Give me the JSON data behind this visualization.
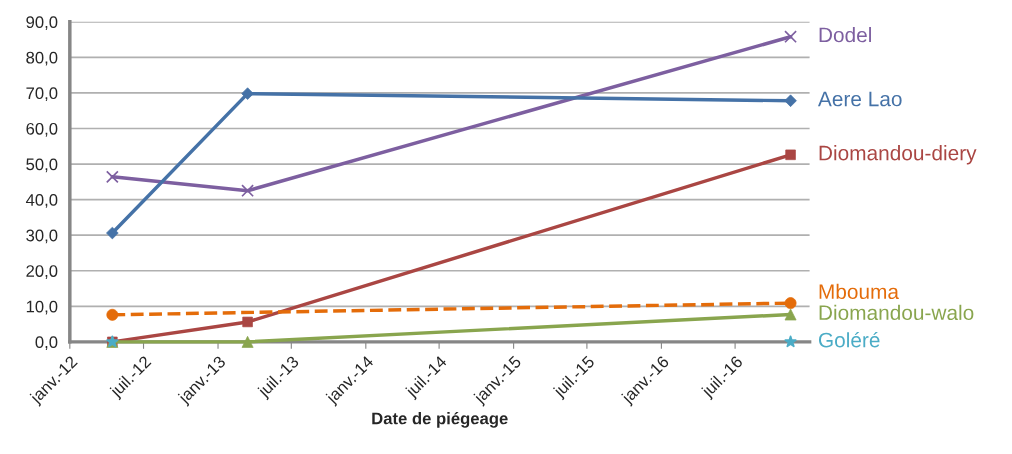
{
  "chart_data": {
    "type": "line",
    "xlabel": "Date de piégeage",
    "x": [
      "2012-04-15",
      "2013-03-15",
      "2016-11-15"
    ],
    "series": [
      {
        "name": "Dodel",
        "color": "#7d5fa0",
        "marker": "cross",
        "values": [
          46.4,
          42.5,
          85.8
        ]
      },
      {
        "name": "Aere Lao",
        "color": "#4572a7",
        "marker": "diamond",
        "values": [
          30.6,
          69.8,
          67.8
        ]
      },
      {
        "name": "Diomandou-diery",
        "color": "#aa4643",
        "marker": "square",
        "values": [
          0.0,
          5.6,
          52.6
        ]
      },
      {
        "name": "Mbouma",
        "color": "#e46c0a",
        "marker": "circle",
        "line_style": "dashed",
        "x": [
          "2012-04-15",
          "2016-11-15"
        ],
        "values": [
          7.6,
          10.9
        ]
      },
      {
        "name": "Diomandou-walo",
        "color": "#89a54e",
        "marker": "triangle",
        "values": [
          0.0,
          0.0,
          7.7
        ]
      },
      {
        "name": "Goléré",
        "type": "scatter",
        "color": "#4bacc6",
        "marker": "star",
        "x": [
          "2012-04-15",
          "2016-11-15"
        ],
        "values": [
          0.0,
          0.0
        ]
      }
    ],
    "xlim": [
      "2012-01-01",
      "2017-01-01"
    ],
    "xticks": [
      {
        "value": "2012-01-01",
        "label": "janv.-12"
      },
      {
        "value": "2012-07-01",
        "label": "juil.-12"
      },
      {
        "value": "2013-01-01",
        "label": "janv.-13"
      },
      {
        "value": "2013-07-01",
        "label": "juil.-13"
      },
      {
        "value": "2014-01-01",
        "label": "janv.-14"
      },
      {
        "value": "2014-07-01",
        "label": "juil.-14"
      },
      {
        "value": "2015-01-01",
        "label": "janv.-15"
      },
      {
        "value": "2015-07-01",
        "label": "juil.-15"
      },
      {
        "value": "2016-01-01",
        "label": "janv.-16"
      },
      {
        "value": "2016-07-01",
        "label": "juil.-16"
      }
    ],
    "ylim": [
      0,
      90
    ],
    "yticks": [
      {
        "value": 0,
        "label": "0,0"
      },
      {
        "value": 10,
        "label": "10,0"
      },
      {
        "value": 20,
        "label": "20,0"
      },
      {
        "value": 30,
        "label": "30,0"
      },
      {
        "value": 40,
        "label": "40,0"
      },
      {
        "value": 50,
        "label": "50,0"
      },
      {
        "value": 60,
        "label": "60,0"
      },
      {
        "value": 70,
        "label": "70,0"
      },
      {
        "value": 80,
        "label": "80,0"
      },
      {
        "value": 90,
        "label": "90,0"
      }
    ],
    "grid": "y",
    "legend": "right"
  }
}
